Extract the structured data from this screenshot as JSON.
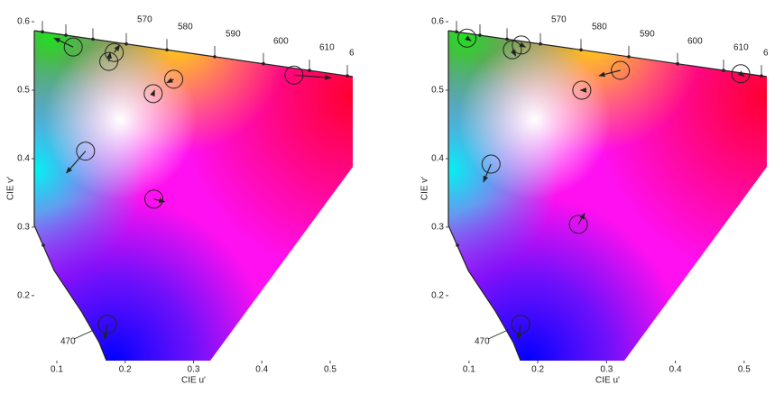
{
  "chart_data": [
    {
      "type": "chromaticity",
      "xlabel": "CIE u'",
      "ylabel": "CIE v'",
      "xlim": [
        0.067,
        0.533
      ],
      "ylim": [
        0.105,
        0.608
      ],
      "xticks": [
        0.1,
        0.2,
        0.3,
        0.4,
        0.5
      ],
      "yticks": [
        0.2,
        0.3,
        0.4,
        0.5,
        0.6
      ],
      "locus_labels": [
        "570",
        "580",
        "590",
        "600",
        "610",
        "6",
        "470"
      ],
      "points": [
        {
          "u": 0.124,
          "v": 0.563,
          "u_end": 0.096,
          "v_end": 0.576
        },
        {
          "u": 0.184,
          "v": 0.555,
          "u_end": 0.192,
          "v_end": 0.566
        },
        {
          "u": 0.176,
          "v": 0.542,
          "u_end": 0.178,
          "v_end": 0.555
        },
        {
          "u": 0.241,
          "v": 0.495,
          "u_end": 0.243,
          "v_end": 0.5
        },
        {
          "u": 0.271,
          "v": 0.516,
          "u_end": 0.261,
          "v_end": 0.511
        },
        {
          "u": 0.447,
          "v": 0.522,
          "u_end": 0.501,
          "v_end": 0.518
        },
        {
          "u": 0.142,
          "v": 0.411,
          "u_end": 0.114,
          "v_end": 0.379
        },
        {
          "u": 0.242,
          "v": 0.341,
          "u_end": 0.258,
          "v_end": 0.337
        },
        {
          "u": 0.174,
          "v": 0.158,
          "u_end": 0.17,
          "v_end": 0.136
        }
      ]
    },
    {
      "type": "chromaticity",
      "xlabel": "CIE u'",
      "ylabel": "CIE v'",
      "xlim": [
        0.07,
        0.533
      ],
      "ylim": [
        0.105,
        0.608
      ],
      "xticks": [
        0.1,
        0.2,
        0.3,
        0.4,
        0.5
      ],
      "yticks": [
        0.2,
        0.3,
        0.4,
        0.5,
        0.6
      ],
      "locus_labels": [
        "570",
        "580",
        "590",
        "600",
        "610",
        "6",
        "470"
      ],
      "points": [
        {
          "u": 0.097,
          "v": 0.576,
          "u_end": 0.103,
          "v_end": 0.572
        },
        {
          "u": 0.163,
          "v": 0.559,
          "u_end": 0.168,
          "v_end": 0.55
        },
        {
          "u": 0.176,
          "v": 0.566,
          "u_end": 0.182,
          "v_end": 0.563
        },
        {
          "u": 0.264,
          "v": 0.5,
          "u_end": 0.262,
          "v_end": 0.5
        },
        {
          "u": 0.32,
          "v": 0.529,
          "u_end": 0.289,
          "v_end": 0.521
        },
        {
          "u": 0.495,
          "v": 0.524,
          "u_end": 0.5,
          "v_end": 0.52
        },
        {
          "u": 0.132,
          "v": 0.392,
          "u_end": 0.121,
          "v_end": 0.366
        },
        {
          "u": 0.259,
          "v": 0.304,
          "u_end": 0.268,
          "v_end": 0.32
        },
        {
          "u": 0.175,
          "v": 0.158,
          "u_end": 0.172,
          "v_end": 0.136
        }
      ]
    }
  ]
}
